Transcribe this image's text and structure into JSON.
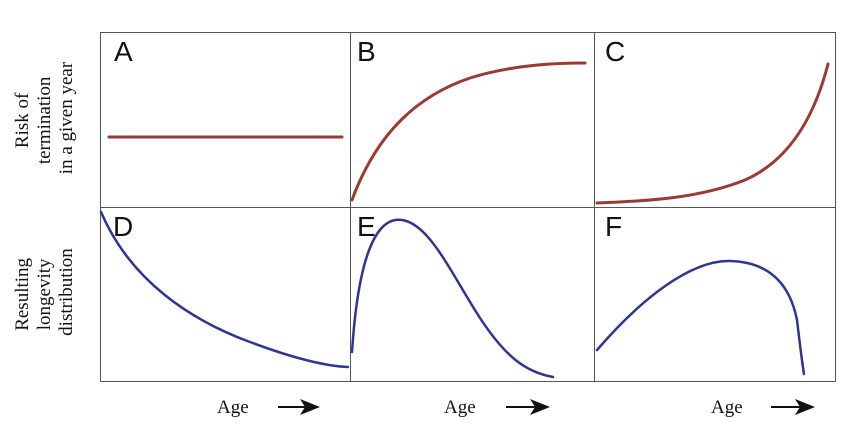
{
  "row_labels": {
    "top": [
      "Risk of",
      "termination",
      "in a given year"
    ],
    "bottom": [
      "Resulting",
      "longevity",
      "distribution"
    ]
  },
  "panels": [
    {
      "letter": "A",
      "shape": "constant"
    },
    {
      "letter": "B",
      "shape": "saturating increase"
    },
    {
      "letter": "C",
      "shape": "exponential increase"
    },
    {
      "letter": "D",
      "shape": "exponential decay"
    },
    {
      "letter": "E",
      "shape": "early peak, right skew"
    },
    {
      "letter": "F",
      "shape": "late peak, left skew"
    }
  ],
  "x_axis_labels": [
    "Age",
    "Age",
    "Age"
  ],
  "colors": {
    "risk_curve": "#9b3a32",
    "distribution_curve": "#2e3592",
    "frame": "#555555"
  }
}
